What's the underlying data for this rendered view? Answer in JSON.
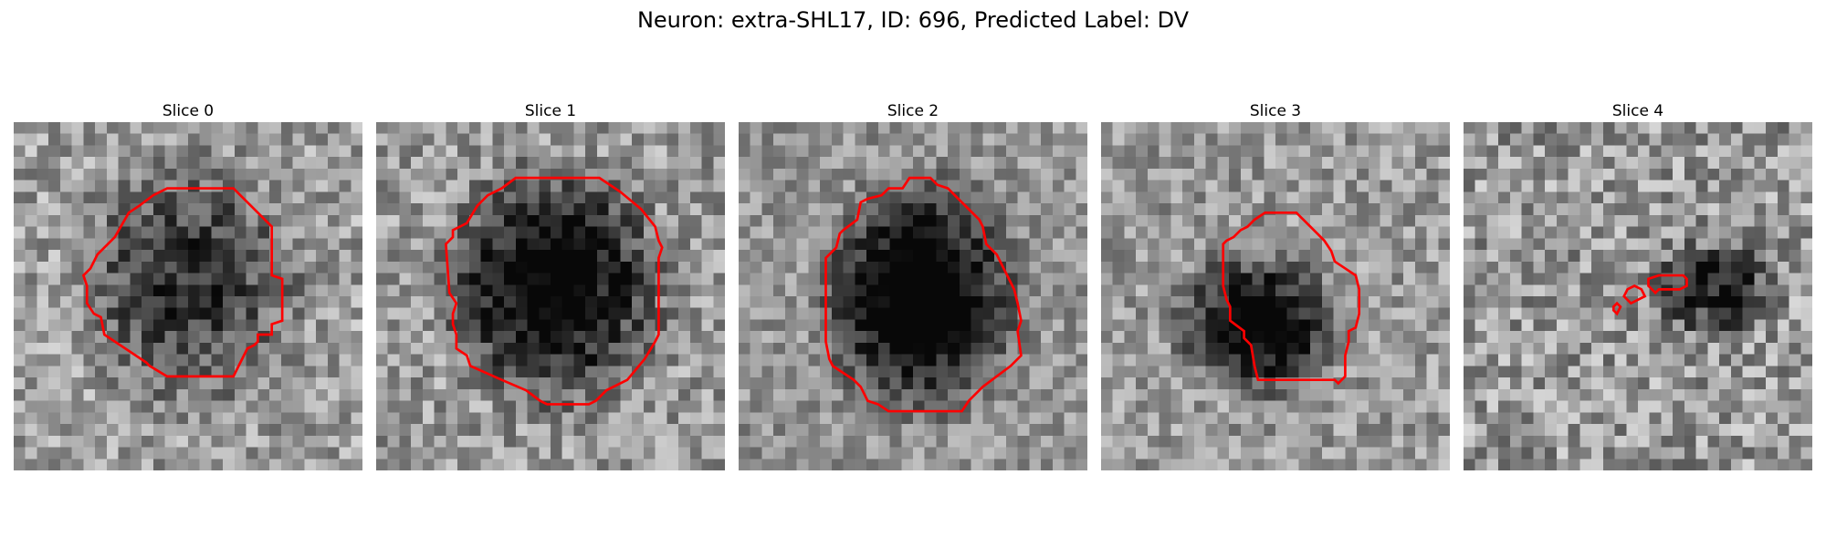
{
  "figure": {
    "title": "Neuron: extra-SHL17, ID: 696, Predicted Label: DV"
  },
  "panels": [
    {
      "title": "Slice 0",
      "seed": 11,
      "blob": [
        0.5,
        0.46,
        0.31,
        0.35
      ],
      "darkness": 0.45,
      "bg": 0.62,
      "noise": 0.22
    },
    {
      "title": "Slice 1",
      "seed": 23,
      "blob": [
        0.51,
        0.47,
        0.3,
        0.33
      ],
      "darkness": 0.7,
      "bg": 0.6,
      "noise": 0.22
    },
    {
      "title": "Slice 2",
      "seed": 37,
      "blob": [
        0.52,
        0.5,
        0.27,
        0.32
      ],
      "darkness": 0.75,
      "bg": 0.58,
      "noise": 0.18
    },
    {
      "title": "Slice 3",
      "seed": 51,
      "blob": [
        0.45,
        0.58,
        0.22,
        0.2
      ],
      "darkness": 0.7,
      "bg": 0.6,
      "noise": 0.2
    },
    {
      "title": "Slice 4",
      "seed": 67,
      "blob": [
        0.72,
        0.48,
        0.18,
        0.14
      ],
      "darkness": 0.5,
      "bg": 0.6,
      "noise": 0.25
    }
  ],
  "colors": {
    "contour": "#ff0000",
    "pixel_colormap": "grayscale"
  },
  "grid_size": 30
}
